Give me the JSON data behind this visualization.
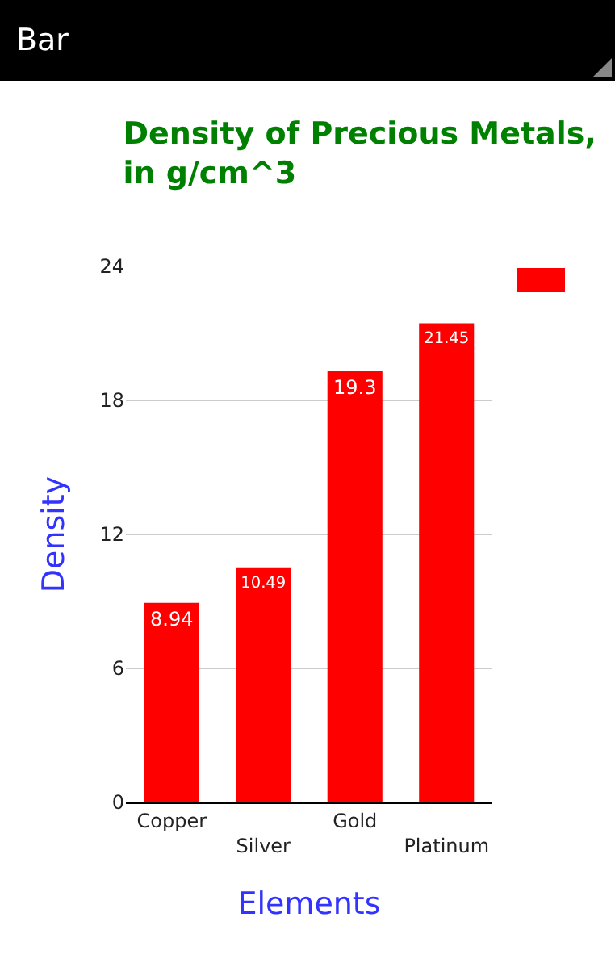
{
  "chart_data": {
    "type": "bar",
    "title": "Density of Precious Metals, in g/cm^3",
    "xlabel": "Elements",
    "ylabel": "Density",
    "annotations": [
      "Bar"
    ],
    "categories": [
      "Copper",
      "Silver",
      "Gold",
      "Platinum"
    ],
    "series": [
      {
        "color": "#ff0000",
        "values": [
          8.94,
          10.49,
          19.3,
          21.45
        ]
      }
    ],
    "ylim": [
      0,
      24
    ],
    "yticks": [
      0,
      6,
      12,
      18,
      24
    ],
    "grid": "y",
    "data_labels": true
  }
}
